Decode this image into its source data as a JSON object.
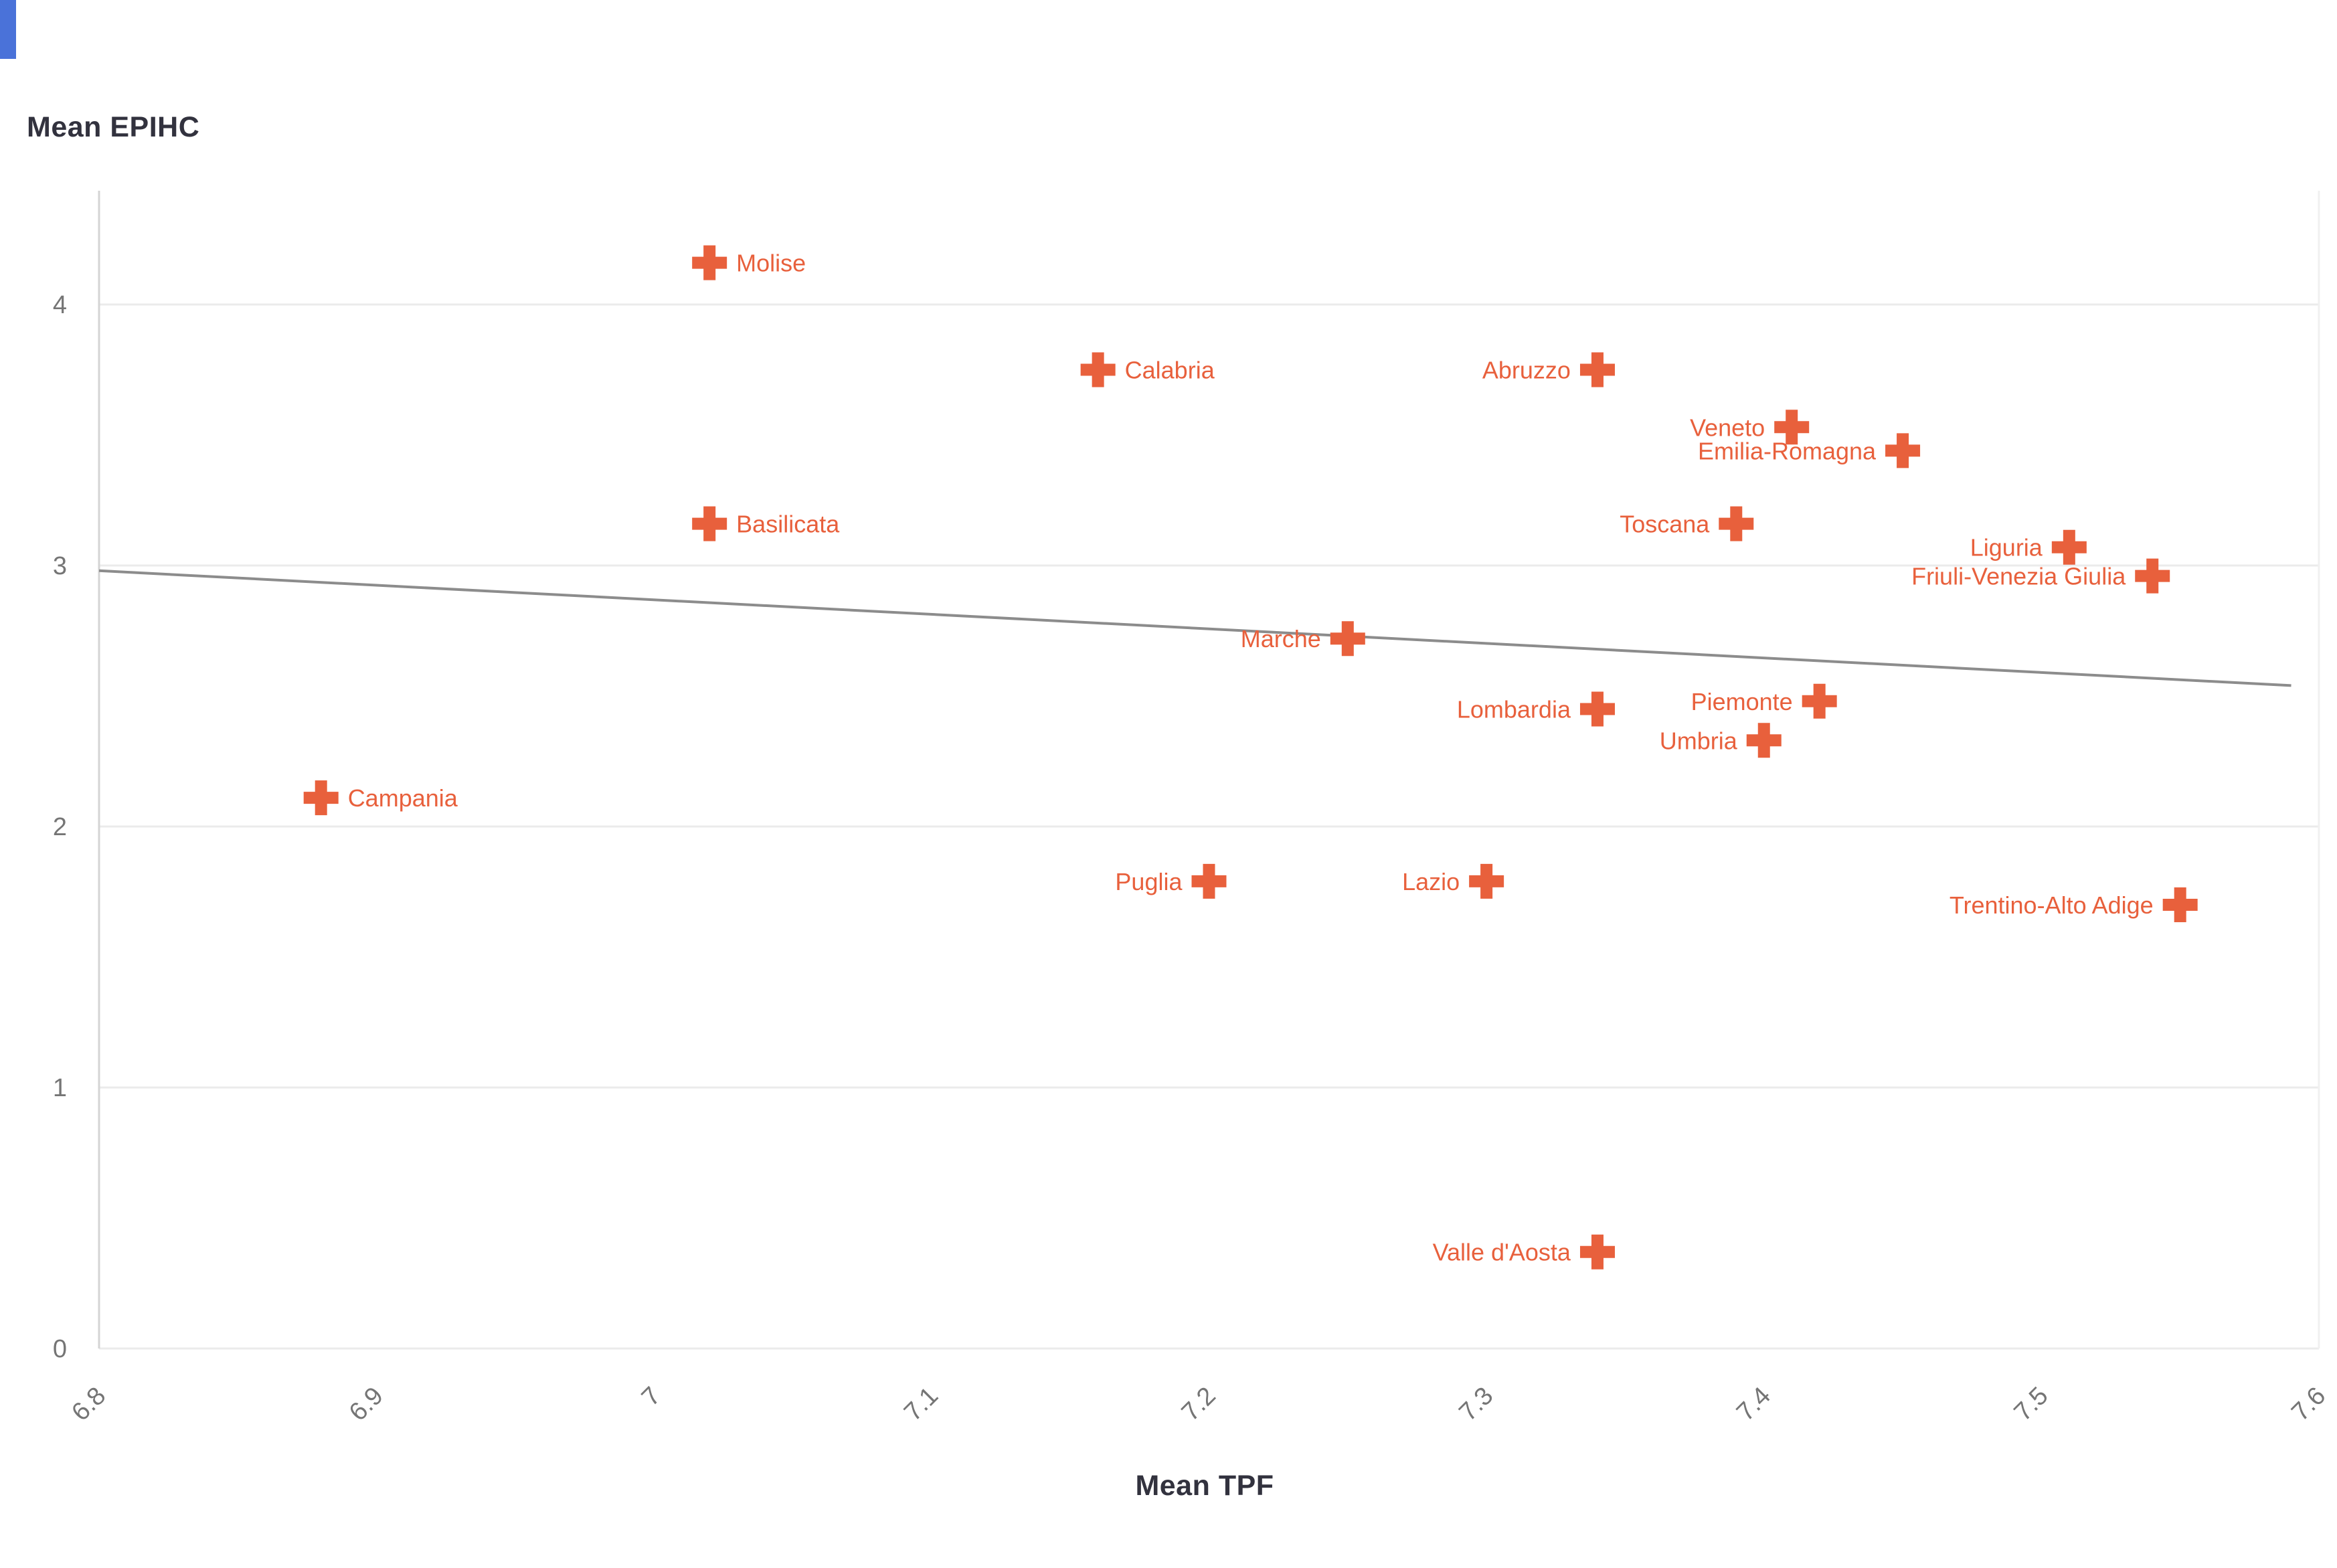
{
  "colors": {
    "background": "#ffffff",
    "marker": "#e8603c",
    "point_label": "#e8603c",
    "trend_line": "#8c8c8c",
    "gridline": "#ebebeb",
    "axis_line": "#d4d4d4",
    "right_edge_line": "#f0f0f0",
    "tick_text": "#757575",
    "axis_title_text": "#32323e",
    "accent_bar": "#4a72d9"
  },
  "chart_data": {
    "type": "scatter",
    "xlabel": "Mean TPF",
    "ylabel": "Mean EPIHC",
    "xlim": [
      6.8,
      7.6
    ],
    "ylim": [
      0,
      4.44
    ],
    "grid": "horizontal",
    "legend": "none",
    "marker_shape": "plus",
    "x_ticks": [
      {
        "value": 6.8,
        "label": "6.8"
      },
      {
        "value": 6.9,
        "label": "6.9"
      },
      {
        "value": 7.0,
        "label": "7"
      },
      {
        "value": 7.1,
        "label": "7.1"
      },
      {
        "value": 7.2,
        "label": "7.2"
      },
      {
        "value": 7.3,
        "label": "7.3"
      },
      {
        "value": 7.4,
        "label": "7.4"
      },
      {
        "value": 7.5,
        "label": "7.5"
      },
      {
        "value": 7.6,
        "label": "7.6"
      }
    ],
    "y_ticks": [
      {
        "value": 0,
        "label": "0"
      },
      {
        "value": 1,
        "label": "1"
      },
      {
        "value": 2,
        "label": "2"
      },
      {
        "value": 3,
        "label": "3"
      },
      {
        "value": 4,
        "label": "4"
      }
    ],
    "trend_line": {
      "x1": 6.8,
      "y1": 2.98,
      "x2": 7.59,
      "y2": 2.54
    },
    "points": [
      {
        "label": "Molise",
        "x": 7.02,
        "y": 4.16,
        "label_side": "right"
      },
      {
        "label": "Calabria",
        "x": 7.16,
        "y": 3.75,
        "label_side": "right"
      },
      {
        "label": "Abruzzo",
        "x": 7.34,
        "y": 3.75,
        "label_side": "left"
      },
      {
        "label": "Veneto",
        "x": 7.41,
        "y": 3.53,
        "label_side": "left"
      },
      {
        "label": "Emilia-Romagna",
        "x": 7.45,
        "y": 3.44,
        "label_side": "left"
      },
      {
        "label": "Basilicata",
        "x": 7.02,
        "y": 3.16,
        "label_side": "right"
      },
      {
        "label": "Toscana",
        "x": 7.39,
        "y": 3.16,
        "label_side": "left"
      },
      {
        "label": "Liguria",
        "x": 7.51,
        "y": 3.07,
        "label_side": "left"
      },
      {
        "label": "Friuli-Venezia Giulia",
        "x": 7.54,
        "y": 2.96,
        "label_side": "left"
      },
      {
        "label": "Marche",
        "x": 7.25,
        "y": 2.72,
        "label_side": "left"
      },
      {
        "label": "Piemonte",
        "x": 7.42,
        "y": 2.48,
        "label_side": "left"
      },
      {
        "label": "Lombardia",
        "x": 7.34,
        "y": 2.45,
        "label_side": "left"
      },
      {
        "label": "Umbria",
        "x": 7.4,
        "y": 2.33,
        "label_side": "left"
      },
      {
        "label": "Campania",
        "x": 6.88,
        "y": 2.11,
        "label_side": "right"
      },
      {
        "label": "Puglia",
        "x": 7.2,
        "y": 1.79,
        "label_side": "left"
      },
      {
        "label": "Lazio",
        "x": 7.3,
        "y": 1.79,
        "label_side": "left"
      },
      {
        "label": "Trentino-Alto Adige",
        "x": 7.55,
        "y": 1.7,
        "label_side": "left"
      },
      {
        "label": "Valle d'Aosta",
        "x": 7.34,
        "y": 0.37,
        "label_side": "left"
      }
    ]
  }
}
